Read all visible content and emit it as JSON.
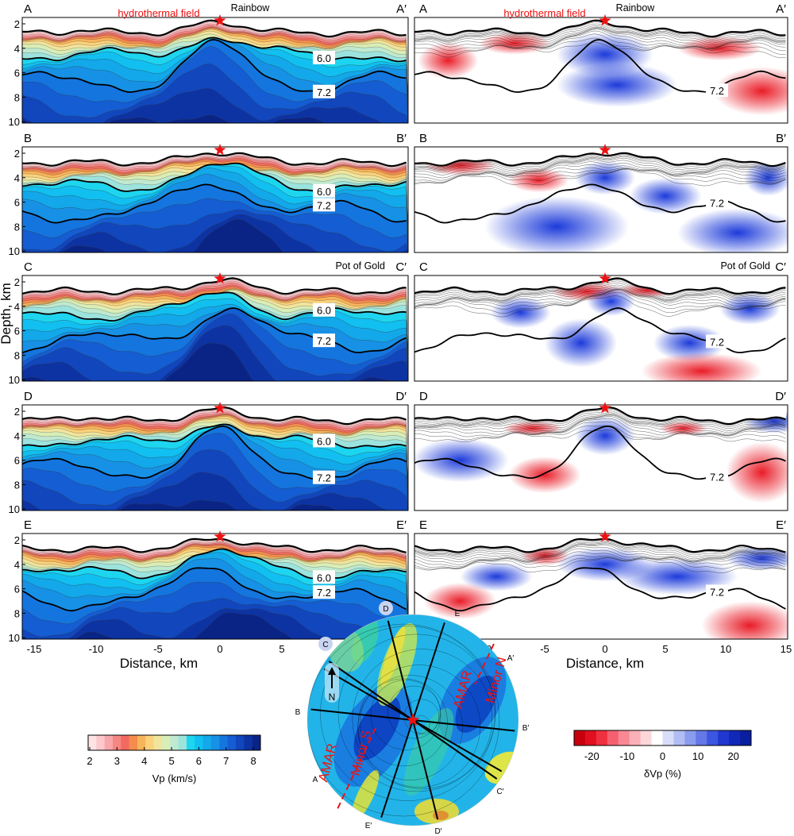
{
  "chart_data": [
    {
      "type": "heatmap",
      "panel": "Vp sections",
      "rows": [
        {
          "start": "A",
          "end": "A′",
          "title": "Rainbow",
          "annotation": "hydrothermal field"
        },
        {
          "start": "B",
          "end": "B′",
          "title": ""
        },
        {
          "start": "C",
          "end": "C′",
          "title": "Pot of Gold"
        },
        {
          "start": "D",
          "end": "D′",
          "title": ""
        },
        {
          "start": "E",
          "end": "E′",
          "title": ""
        }
      ],
      "contour_labels": [
        "6.0",
        "7.2"
      ],
      "xlabel": "Distance, km",
      "ylabel": "Depth, km",
      "xlim": [
        -15,
        15
      ],
      "ylim": [
        10,
        2
      ],
      "xticks": [
        "-15",
        "-10",
        "-5",
        "0",
        "5",
        "10",
        "15"
      ],
      "yticks": [
        "2",
        "4",
        "6",
        "8",
        "10"
      ],
      "colorbar": {
        "label": "Vp (km/s)",
        "ticks": [
          "2",
          "3",
          "4",
          "5",
          "6",
          "7",
          "8"
        ],
        "range": [
          2,
          8
        ]
      }
    },
    {
      "type": "heatmap",
      "panel": "dVp sections",
      "rows": [
        {
          "start": "A",
          "end": "A′",
          "title": "Rainbow",
          "annotation": "hydrothermal field"
        },
        {
          "start": "B",
          "end": "B′",
          "title": ""
        },
        {
          "start": "C",
          "end": "C′",
          "title": "Pot of Gold"
        },
        {
          "start": "D",
          "end": "D′",
          "title": ""
        },
        {
          "start": "E",
          "end": "E′",
          "title": ""
        }
      ],
      "contour_labels": [
        "7.2"
      ],
      "xlabel": "Distance, km",
      "xlim": [
        -15,
        15
      ],
      "xticks": [
        "-15",
        "-10",
        "-5",
        "0",
        "5",
        "10",
        "15"
      ],
      "colorbar": {
        "label": "δVp (%)",
        "ticks": [
          "-20",
          "-10",
          "0",
          "10",
          "20"
        ],
        "range": [
          -25,
          25
        ]
      }
    }
  ],
  "inset_map": {
    "labels": [
      "A",
      "A′",
      "B",
      "B′",
      "C",
      "C′",
      "D",
      "D′",
      "E",
      "E′"
    ],
    "north": "N",
    "segments": [
      "AMAR",
      "Minor S",
      "AMAR",
      "Minor N"
    ]
  },
  "colors": {
    "star": "#ee1111",
    "annotation": "#ee1111"
  }
}
